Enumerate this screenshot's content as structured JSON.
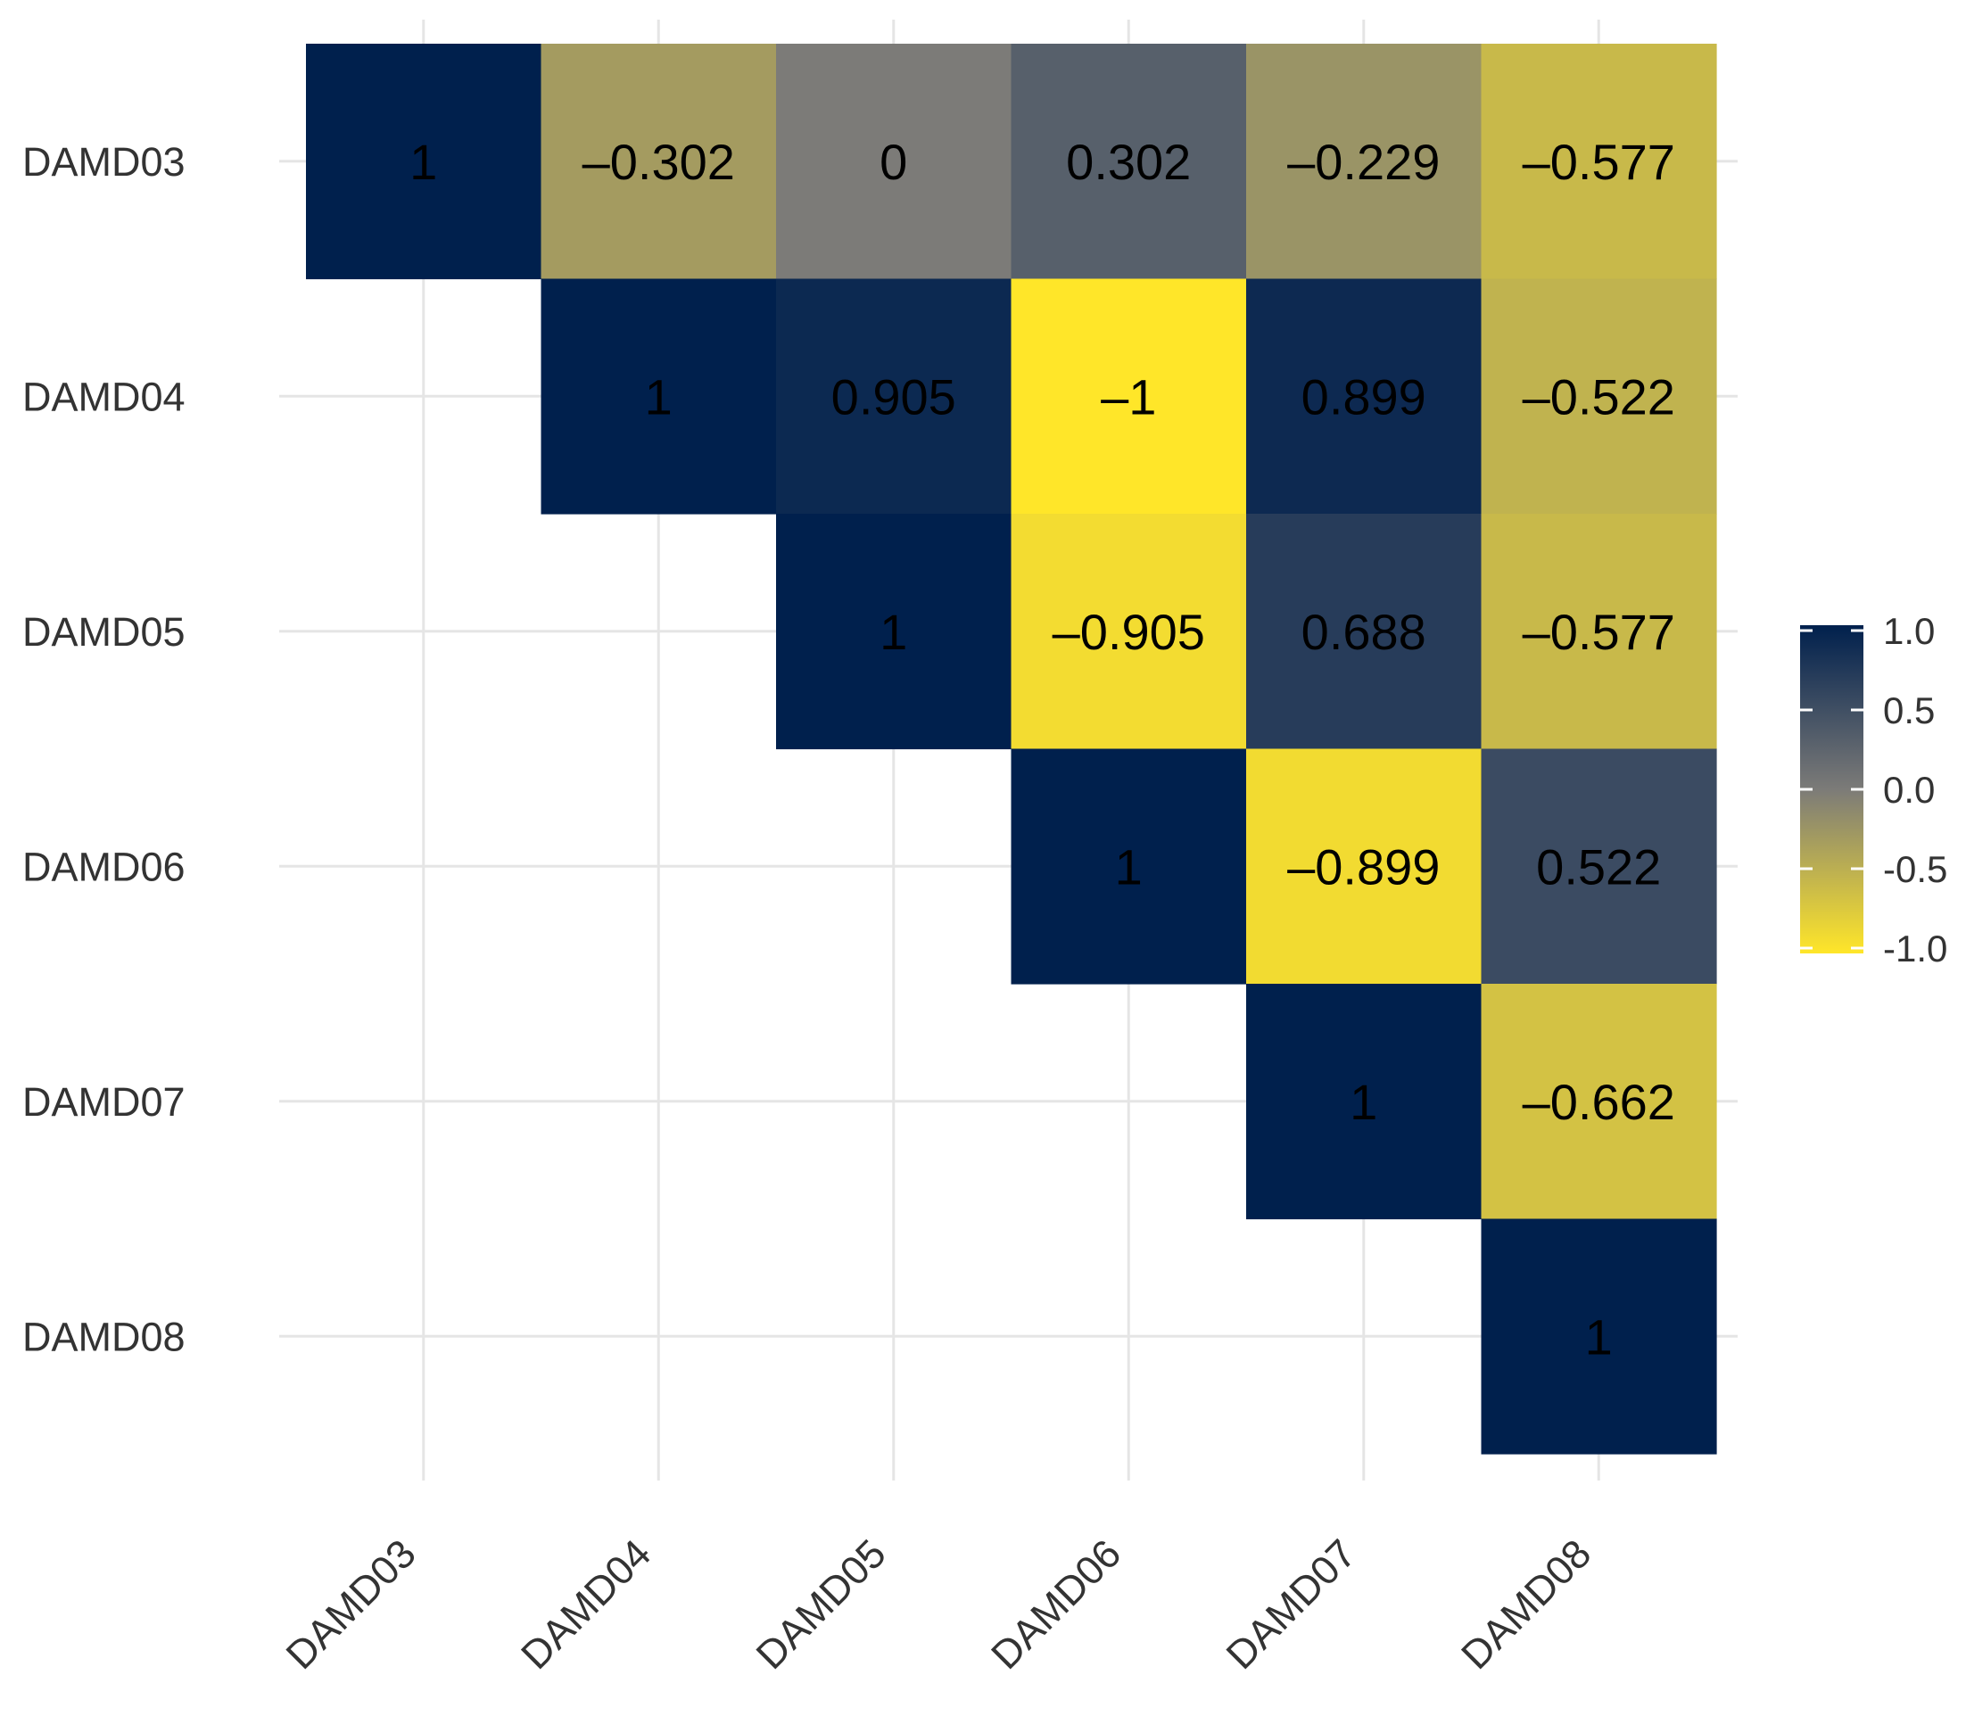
{
  "chart_data": {
    "type": "heatmap",
    "title": "",
    "xlabel": "",
    "ylabel": "",
    "categories": [
      "DAMD03",
      "DAMD04",
      "DAMD05",
      "DAMD06",
      "DAMD07",
      "DAMD08"
    ],
    "rows": [
      "DAMD03",
      "DAMD04",
      "DAMD05",
      "DAMD06",
      "DAMD07",
      "DAMD08"
    ],
    "columns": [
      "DAMD03",
      "DAMD04",
      "DAMD05",
      "DAMD06",
      "DAMD07",
      "DAMD08"
    ],
    "cells": [
      {
        "row": 0,
        "col": 0,
        "value": 1,
        "label": "1"
      },
      {
        "row": 0,
        "col": 1,
        "value": -0.302,
        "label": "–0.302"
      },
      {
        "row": 0,
        "col": 2,
        "value": 0,
        "label": "0"
      },
      {
        "row": 0,
        "col": 3,
        "value": 0.302,
        "label": "0.302"
      },
      {
        "row": 0,
        "col": 4,
        "value": -0.229,
        "label": "–0.229"
      },
      {
        "row": 0,
        "col": 5,
        "value": -0.577,
        "label": "–0.577"
      },
      {
        "row": 1,
        "col": 1,
        "value": 1,
        "label": "1"
      },
      {
        "row": 1,
        "col": 2,
        "value": 0.905,
        "label": "0.905"
      },
      {
        "row": 1,
        "col": 3,
        "value": -1,
        "label": "–1"
      },
      {
        "row": 1,
        "col": 4,
        "value": 0.899,
        "label": "0.899"
      },
      {
        "row": 1,
        "col": 5,
        "value": -0.522,
        "label": "–0.522"
      },
      {
        "row": 2,
        "col": 2,
        "value": 1,
        "label": "1"
      },
      {
        "row": 2,
        "col": 3,
        "value": -0.905,
        "label": "–0.905"
      },
      {
        "row": 2,
        "col": 4,
        "value": 0.688,
        "label": "0.688"
      },
      {
        "row": 2,
        "col": 5,
        "value": -0.577,
        "label": "–0.577"
      },
      {
        "row": 3,
        "col": 3,
        "value": 1,
        "label": "1"
      },
      {
        "row": 3,
        "col": 4,
        "value": -0.899,
        "label": "–0.899"
      },
      {
        "row": 3,
        "col": 5,
        "value": 0.522,
        "label": "0.522"
      },
      {
        "row": 4,
        "col": 4,
        "value": 1,
        "label": "1"
      },
      {
        "row": 4,
        "col": 5,
        "value": -0.662,
        "label": "–0.662"
      },
      {
        "row": 5,
        "col": 5,
        "value": 1,
        "label": "1"
      }
    ],
    "color_scale": {
      "low": "#FFE629",
      "mid": "#7C7B78",
      "high": "#00204D",
      "range": [
        -1,
        1
      ]
    },
    "legend": {
      "position": "right",
      "ticks": [
        "1.0",
        "0.5",
        "0.0",
        "-0.5",
        "-1.0"
      ],
      "tick_values": [
        1.0,
        0.5,
        0.0,
        -0.5,
        -1.0
      ]
    },
    "grid": true
  }
}
